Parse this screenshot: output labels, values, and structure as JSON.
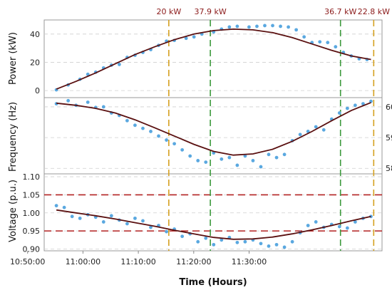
{
  "chart_data": {
    "type": "line",
    "xlabel": "Time (Hours)",
    "x_ticks": [
      "10:50:00",
      "11:00:00",
      "11:10:00",
      "11:20:00",
      "11:30:00"
    ],
    "x_range_min": [
      -7,
      54
    ],
    "vlines": [
      {
        "t": 15.5,
        "label": "20 kW",
        "color": "#d4a020"
      },
      {
        "t": 23.0,
        "label": "37.9 kW",
        "color": "#3c9a3c"
      },
      {
        "t": 46.5,
        "label": "36.7 kW",
        "color": "#3c9a3c"
      },
      {
        "t": 52.5,
        "label": "22.8 kW",
        "color": "#d4a020"
      }
    ],
    "panels": [
      {
        "id": "power",
        "ylabel": "Power (kW)",
        "y_ticks": [
          0,
          20,
          40
        ],
        "ylim": [
          -5,
          50
        ],
        "fit": {
          "x": [
            0,
            5,
            10,
            15,
            20,
            25,
            30,
            35,
            40,
            45,
            50,
            55,
            60,
            65,
            70,
            75,
            80
          ],
          "y": [
            1.0,
            6.5,
            12.5,
            19.0,
            25.5,
            31.0,
            36.0,
            40.0,
            42.5,
            43.5,
            43.0,
            41.0,
            37.5,
            33.0,
            28.5,
            24.5,
            22.0
          ]
        },
        "points": {
          "x": [
            0,
            3,
            6,
            8,
            10,
            12,
            14,
            16,
            18,
            20,
            22,
            24,
            26,
            28,
            30,
            33,
            35,
            37,
            40,
            42,
            44,
            46,
            49,
            51,
            53,
            55,
            57,
            59,
            61,
            63,
            65,
            67,
            69,
            71,
            73,
            75,
            77,
            79
          ],
          "y": [
            0.5,
            4.0,
            8.0,
            11.5,
            13.0,
            16.0,
            18.0,
            18.5,
            23.5,
            25.0,
            27.0,
            29.0,
            32.0,
            35.0,
            35.5,
            37.0,
            38.0,
            40.0,
            41.5,
            43.5,
            45.0,
            45.5,
            45.0,
            45.5,
            46.0,
            46.0,
            45.5,
            45.0,
            43.0,
            38.0,
            34.0,
            34.5,
            34.0,
            31.0,
            27.0,
            24.5,
            22.5,
            22.0
          ]
        }
      },
      {
        "id": "frequency",
        "ylabel": "Frequency (Hz)",
        "y_ticks": [
          58,
          59,
          60
        ],
        "ylim": [
          57.82,
          60.3
        ],
        "fit": {
          "x": [
            0,
            5,
            10,
            15,
            20,
            25,
            30,
            35,
            40,
            45,
            50,
            55,
            60,
            65,
            70,
            75,
            80
          ],
          "y": [
            60.12,
            60.05,
            59.95,
            59.8,
            59.58,
            59.32,
            59.05,
            58.78,
            58.55,
            58.43,
            58.47,
            58.62,
            58.88,
            59.2,
            59.55,
            59.88,
            60.14
          ]
        },
        "points": {
          "x": [
            0,
            3,
            5,
            8,
            10,
            12,
            14,
            16,
            18,
            20,
            22,
            24,
            26,
            28,
            30,
            32,
            34,
            36,
            38,
            40,
            42,
            44,
            46,
            48,
            50,
            52,
            54,
            56,
            58,
            60,
            62,
            64,
            66,
            68,
            70,
            72,
            74,
            76,
            78,
            80
          ],
          "y": [
            60.1,
            60.2,
            60.05,
            60.15,
            59.98,
            60.0,
            59.8,
            59.72,
            59.55,
            59.4,
            59.3,
            59.2,
            59.05,
            58.92,
            58.8,
            58.6,
            58.4,
            58.25,
            58.2,
            58.5,
            58.3,
            58.35,
            58.1,
            58.4,
            58.25,
            58.05,
            58.45,
            58.35,
            58.45,
            58.9,
            59.1,
            59.2,
            59.35,
            59.25,
            59.6,
            59.8,
            59.95,
            60.05,
            60.1,
            60.18
          ]
        }
      },
      {
        "id": "voltage",
        "ylabel": "Voltage (p.u.)",
        "y_ticks": [
          "0.90",
          "0.95",
          "1.00",
          "1.05",
          "1.10"
        ],
        "ylim": [
          0.895,
          1.108
        ],
        "hlines": [
          {
            "y": 1.05,
            "color": "#b22222"
          },
          {
            "y": 0.95,
            "color": "#b22222"
          }
        ],
        "fit": {
          "x": [
            0,
            5,
            10,
            15,
            20,
            25,
            30,
            35,
            40,
            45,
            50,
            55,
            60,
            65,
            70,
            75,
            80
          ],
          "y": [
            1.008,
            1.0,
            0.992,
            0.983,
            0.973,
            0.963,
            0.952,
            0.942,
            0.932,
            0.927,
            0.928,
            0.933,
            0.942,
            0.953,
            0.965,
            0.978,
            0.99
          ]
        },
        "points": {
          "x": [
            0,
            2,
            4,
            6,
            8,
            10,
            12,
            14,
            16,
            18,
            20,
            22,
            24,
            26,
            28,
            30,
            32,
            34,
            36,
            38,
            40,
            42,
            44,
            46,
            48,
            50,
            52,
            54,
            56,
            58,
            60,
            62,
            64,
            66,
            68,
            70,
            72,
            74,
            76,
            78,
            80
          ],
          "y": [
            1.02,
            1.015,
            0.99,
            0.985,
            0.995,
            0.988,
            0.975,
            0.992,
            0.98,
            0.97,
            0.985,
            0.978,
            0.96,
            0.965,
            0.948,
            0.955,
            0.935,
            0.942,
            0.92,
            0.93,
            0.912,
            0.925,
            0.932,
            0.918,
            0.92,
            0.925,
            0.915,
            0.908,
            0.912,
            0.905,
            0.92,
            0.945,
            0.965,
            0.975,
            0.96,
            0.968,
            0.962,
            0.958,
            0.975,
            0.985,
            0.99
          ]
        }
      }
    ],
    "colors": {
      "fit": "#5a1010",
      "points": "#5aa8e0",
      "grid": "#cfcfcf",
      "frame": "#999999"
    }
  }
}
